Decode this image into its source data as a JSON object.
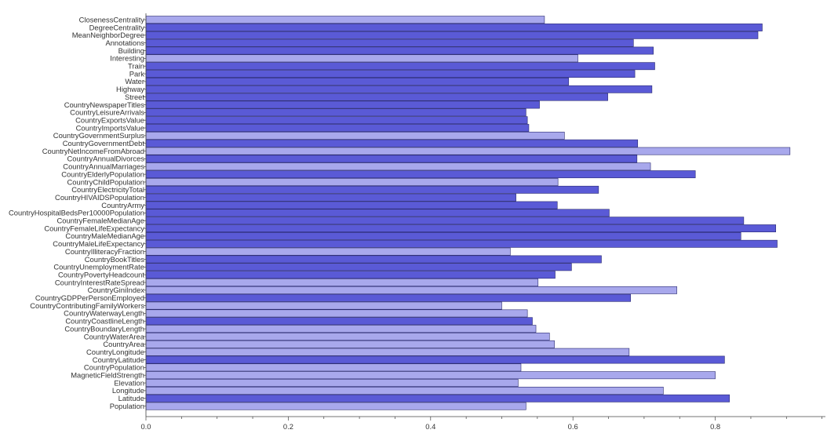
{
  "chart_data": {
    "type": "bar",
    "orientation": "horizontal",
    "title": "",
    "xlabel": "",
    "ylabel": "",
    "xlim": [
      0,
      0.96
    ],
    "x_ticks": [
      0.0,
      0.2,
      0.4,
      0.6,
      0.8
    ],
    "x_tick_labels": [
      "0.0",
      "0.2",
      "0.4",
      "0.6",
      "0.8"
    ],
    "grid": false,
    "legend": "none",
    "colors": {
      "dark": "#5a5ad6",
      "light": "#a8a8ec",
      "edge": "#2a2a70"
    },
    "bars": [
      {
        "label": "ClosenessCentrality",
        "value": 0.56,
        "shade": "light"
      },
      {
        "label": "DegreeCentrality",
        "value": 0.866,
        "shade": "dark"
      },
      {
        "label": "MeanNeighborDegree",
        "value": 0.86,
        "shade": "dark"
      },
      {
        "label": "Annotations",
        "value": 0.685,
        "shade": "dark"
      },
      {
        "label": "Building",
        "value": 0.713,
        "shade": "dark"
      },
      {
        "label": "Interesting",
        "value": 0.607,
        "shade": "light"
      },
      {
        "label": "Train",
        "value": 0.715,
        "shade": "dark"
      },
      {
        "label": "Park",
        "value": 0.687,
        "shade": "dark"
      },
      {
        "label": "Water",
        "value": 0.594,
        "shade": "dark"
      },
      {
        "label": "Highway",
        "value": 0.711,
        "shade": "dark"
      },
      {
        "label": "Street",
        "value": 0.649,
        "shade": "dark"
      },
      {
        "label": "CountryNewspaperTitles",
        "value": 0.553,
        "shade": "dark"
      },
      {
        "label": "CountryLeisureArrivals",
        "value": 0.534,
        "shade": "dark"
      },
      {
        "label": "CountryExportsValue",
        "value": 0.536,
        "shade": "dark"
      },
      {
        "label": "CountryImportsValue",
        "value": 0.538,
        "shade": "dark"
      },
      {
        "label": "CountryGovernmentSurplus",
        "value": 0.588,
        "shade": "light"
      },
      {
        "label": "CountryGovernmentDebt",
        "value": 0.691,
        "shade": "dark"
      },
      {
        "label": "CountryNetIncomeFromAbroad",
        "value": 0.905,
        "shade": "light"
      },
      {
        "label": "CountryAnnualDivorces",
        "value": 0.69,
        "shade": "dark"
      },
      {
        "label": "CountryAnnualMarriages",
        "value": 0.709,
        "shade": "light"
      },
      {
        "label": "CountryElderlyPopulation",
        "value": 0.772,
        "shade": "dark"
      },
      {
        "label": "CountryChildPopulation",
        "value": 0.579,
        "shade": "light"
      },
      {
        "label": "CountryElectricityTotal",
        "value": 0.636,
        "shade": "dark"
      },
      {
        "label": "CountryHIVAIDSPopulation",
        "value": 0.52,
        "shade": "dark"
      },
      {
        "label": "CountryArmy",
        "value": 0.578,
        "shade": "dark"
      },
      {
        "label": "CountryHospitalBedsPer10000Population",
        "value": 0.651,
        "shade": "dark"
      },
      {
        "label": "CountryFemaleMedianAge",
        "value": 0.84,
        "shade": "dark"
      },
      {
        "label": "CountryFemaleLifeExpectancy",
        "value": 0.885,
        "shade": "dark"
      },
      {
        "label": "CountryMaleMedianAge",
        "value": 0.836,
        "shade": "dark"
      },
      {
        "label": "CountryMaleLifeExpectancy",
        "value": 0.887,
        "shade": "dark"
      },
      {
        "label": "CountryIlliteracyFraction",
        "value": 0.512,
        "shade": "light"
      },
      {
        "label": "CountryBookTitles",
        "value": 0.64,
        "shade": "dark"
      },
      {
        "label": "CountryUnemploymentRate",
        "value": 0.598,
        "shade": "dark"
      },
      {
        "label": "CountryPovertyHeadcount",
        "value": 0.575,
        "shade": "dark"
      },
      {
        "label": "CountryInterestRateSpread",
        "value": 0.551,
        "shade": "light"
      },
      {
        "label": "CountryGiniIndex",
        "value": 0.746,
        "shade": "light"
      },
      {
        "label": "CountryGDPPerPersonEmployed",
        "value": 0.681,
        "shade": "dark"
      },
      {
        "label": "CountryContributingFamilyWorkers",
        "value": 0.5,
        "shade": "light"
      },
      {
        "label": "CountryWaterwayLength",
        "value": 0.536,
        "shade": "light"
      },
      {
        "label": "CountryCoastlineLength",
        "value": 0.543,
        "shade": "dark"
      },
      {
        "label": "CountryBoundaryLength",
        "value": 0.548,
        "shade": "light"
      },
      {
        "label": "CountryWaterArea",
        "value": 0.567,
        "shade": "light"
      },
      {
        "label": "CountryArea",
        "value": 0.574,
        "shade": "light"
      },
      {
        "label": "CountryLongitude",
        "value": 0.679,
        "shade": "light"
      },
      {
        "label": "CountryLatitude",
        "value": 0.813,
        "shade": "dark"
      },
      {
        "label": "CountryPopulation",
        "value": 0.527,
        "shade": "light"
      },
      {
        "label": "MagneticFieldStrength",
        "value": 0.8,
        "shade": "light"
      },
      {
        "label": "Elevation",
        "value": 0.523,
        "shade": "light"
      },
      {
        "label": "Longitude",
        "value": 0.727,
        "shade": "light"
      },
      {
        "label": "Latitude",
        "value": 0.82,
        "shade": "dark"
      },
      {
        "label": "Population",
        "value": 0.534,
        "shade": "light"
      }
    ]
  }
}
